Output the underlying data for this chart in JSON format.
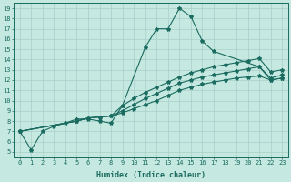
{
  "xlabel": "Humidex (Indice chaleur)",
  "bg_color": "#c5e8e0",
  "grid_color": "#a8cfc8",
  "line_color": "#1a6b60",
  "xlim": [
    -0.5,
    23.5
  ],
  "ylim": [
    4.5,
    19.5
  ],
  "xticks": [
    0,
    1,
    2,
    3,
    4,
    5,
    6,
    7,
    8,
    9,
    10,
    11,
    12,
    13,
    14,
    15,
    16,
    17,
    18,
    19,
    20,
    21,
    22,
    23
  ],
  "yticks": [
    5,
    6,
    7,
    8,
    9,
    10,
    11,
    12,
    13,
    14,
    15,
    16,
    17,
    18,
    19
  ],
  "lines": [
    {
      "x": [
        0,
        1,
        2,
        3,
        4,
        5,
        6,
        7,
        8,
        9,
        11,
        12,
        13,
        14,
        15,
        16,
        17,
        21,
        22,
        23
      ],
      "y": [
        7.0,
        5.2,
        7.0,
        7.5,
        7.8,
        8.2,
        8.2,
        8.0,
        7.8,
        9.5,
        15.2,
        17.0,
        17.0,
        19.0,
        18.2,
        15.8,
        14.8,
        13.3,
        12.0,
        12.2
      ]
    },
    {
      "x": [
        0,
        5,
        6,
        7,
        8,
        9,
        10,
        11,
        12,
        13,
        14,
        15,
        16,
        17,
        18,
        19,
        20,
        21,
        22,
        23
      ],
      "y": [
        7.0,
        8.0,
        8.3,
        8.4,
        8.5,
        8.8,
        9.2,
        9.6,
        10.0,
        10.5,
        11.0,
        11.3,
        11.6,
        11.8,
        12.0,
        12.2,
        12.3,
        12.4,
        12.0,
        12.2
      ]
    },
    {
      "x": [
        0,
        5,
        6,
        7,
        8,
        9,
        10,
        11,
        12,
        13,
        14,
        15,
        16,
        17,
        18,
        19,
        20,
        21,
        22,
        23
      ],
      "y": [
        7.0,
        8.0,
        8.3,
        8.4,
        8.5,
        9.0,
        9.6,
        10.2,
        10.7,
        11.2,
        11.7,
        12.0,
        12.3,
        12.5,
        12.7,
        12.9,
        13.1,
        13.3,
        12.2,
        12.5
      ]
    },
    {
      "x": [
        0,
        5,
        6,
        7,
        8,
        9,
        10,
        11,
        12,
        13,
        14,
        15,
        16,
        17,
        18,
        19,
        20,
        21,
        22,
        23
      ],
      "y": [
        7.0,
        8.0,
        8.3,
        8.4,
        8.5,
        9.5,
        10.2,
        10.8,
        11.3,
        11.8,
        12.3,
        12.7,
        13.0,
        13.3,
        13.5,
        13.7,
        13.9,
        14.1,
        12.8,
        13.0
      ]
    }
  ]
}
